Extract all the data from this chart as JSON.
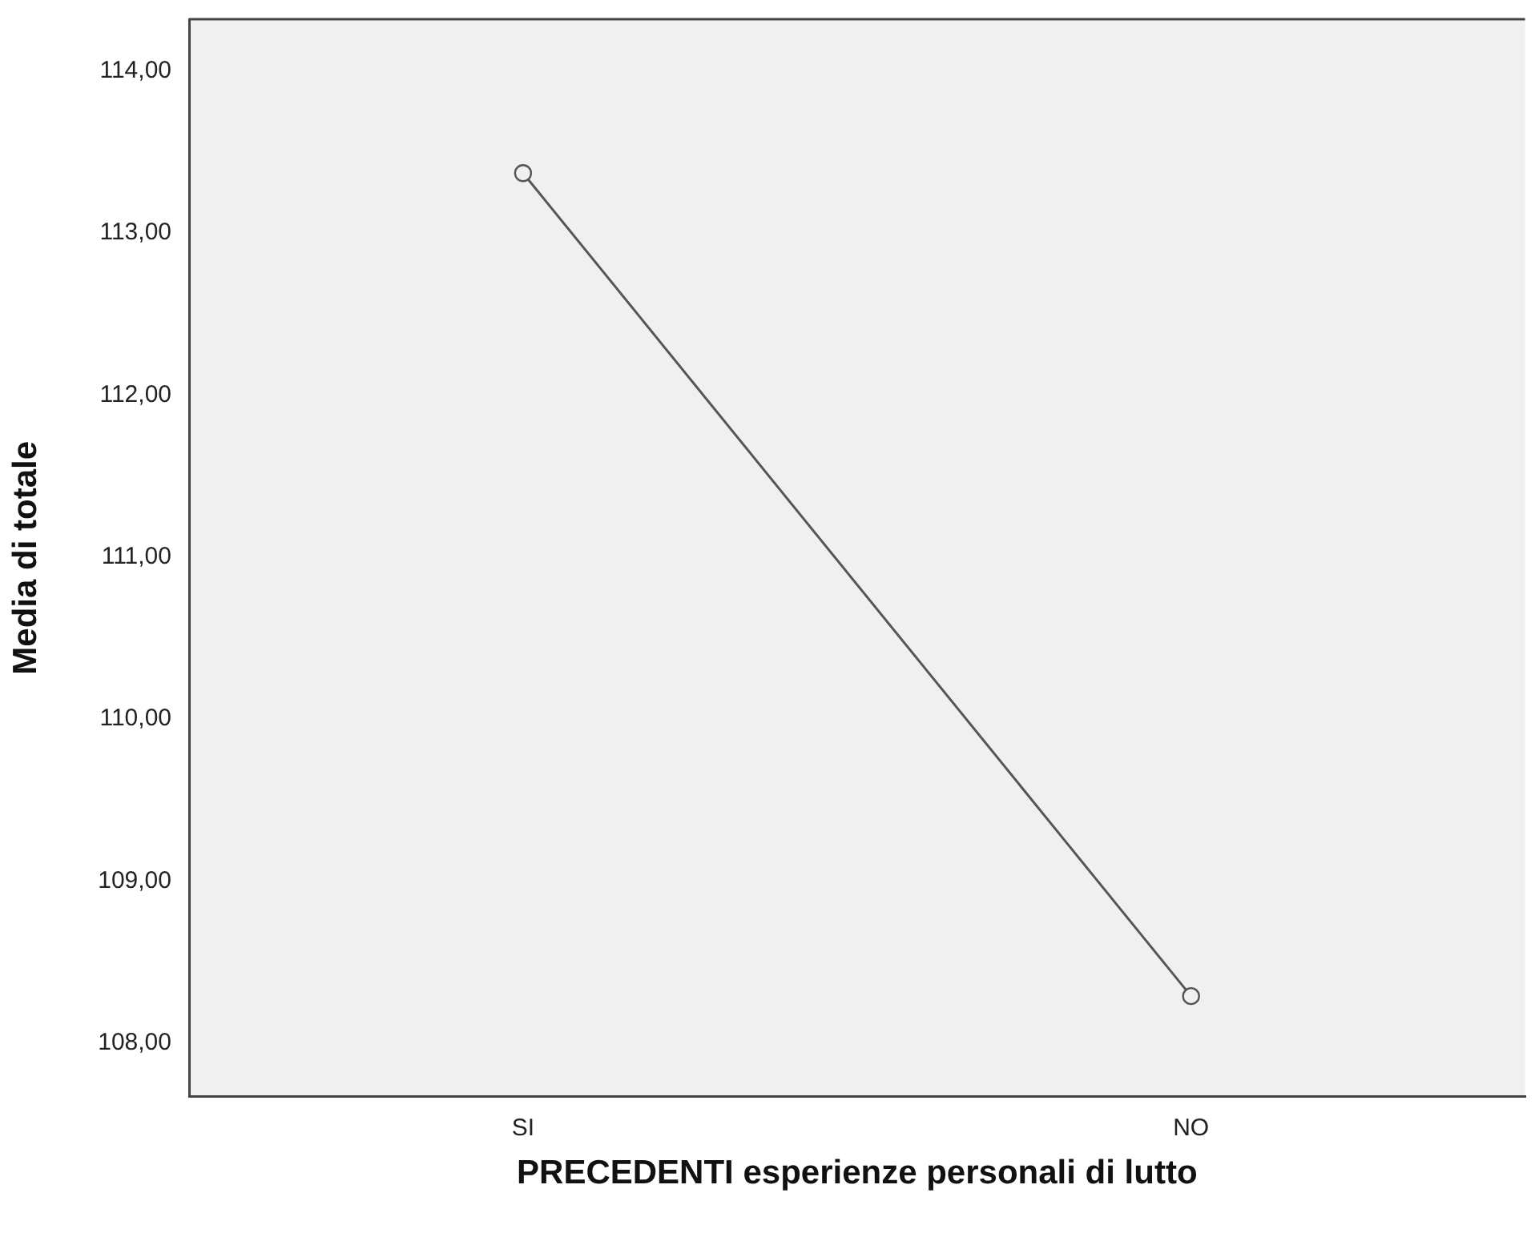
{
  "chart_data": {
    "type": "line",
    "xlabel": "PRECEDENTI esperienze personali di lutto",
    "ylabel": "Media di totale",
    "categories": [
      "SI",
      "NO"
    ],
    "series": [
      {
        "color": "#555555",
        "values": [
          113.37,
          108.29
        ]
      }
    ],
    "ylim": [
      107.67,
      114.32
    ],
    "yticks": [
      {
        "value": 108,
        "label": "108,00"
      },
      {
        "value": 109,
        "label": "109,00"
      },
      {
        "value": 110,
        "label": "110,00"
      },
      {
        "value": 111,
        "label": "111,00"
      },
      {
        "value": 112,
        "label": "112,00"
      },
      {
        "value": 113,
        "label": "113,00"
      },
      {
        "value": 114,
        "label": "114,00"
      }
    ],
    "grid": false,
    "legend": false,
    "marker": "circle",
    "line_style": "solid"
  }
}
